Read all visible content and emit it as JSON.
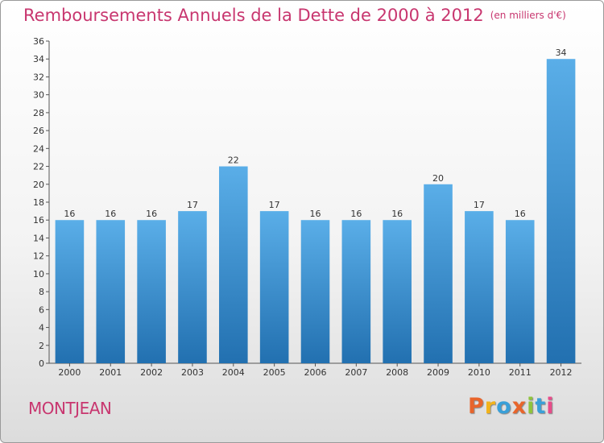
{
  "header": {
    "title": "Remboursements Annuels de la Dette de 2000 à 2012",
    "unit": "(en milliers d'€)"
  },
  "footer": {
    "city": "MONTJEAN",
    "brand": "Proxiti",
    "brand_colors": [
      "#e8652b",
      "#f2b31b",
      "#3aa0d8",
      "#e8652b",
      "#8fc43c",
      "#3aa0d8",
      "#e84c8a"
    ]
  },
  "colors": {
    "title": "#c8366f",
    "bar_top": "#5aaee8",
    "bar_bottom": "#2270b0"
  },
  "chart_data": {
    "type": "bar",
    "title": "Remboursements Annuels de la Dette de 2000 à 2012",
    "categories": [
      "2000",
      "2001",
      "2002",
      "2003",
      "2004",
      "2005",
      "2006",
      "2007",
      "2008",
      "2009",
      "2010",
      "2011",
      "2012"
    ],
    "values": [
      16,
      16,
      16,
      17,
      22,
      17,
      16,
      16,
      16,
      20,
      17,
      16,
      34
    ],
    "ylim": [
      0,
      36
    ],
    "ytick_step": 2,
    "grid": false,
    "data_labels": true
  }
}
